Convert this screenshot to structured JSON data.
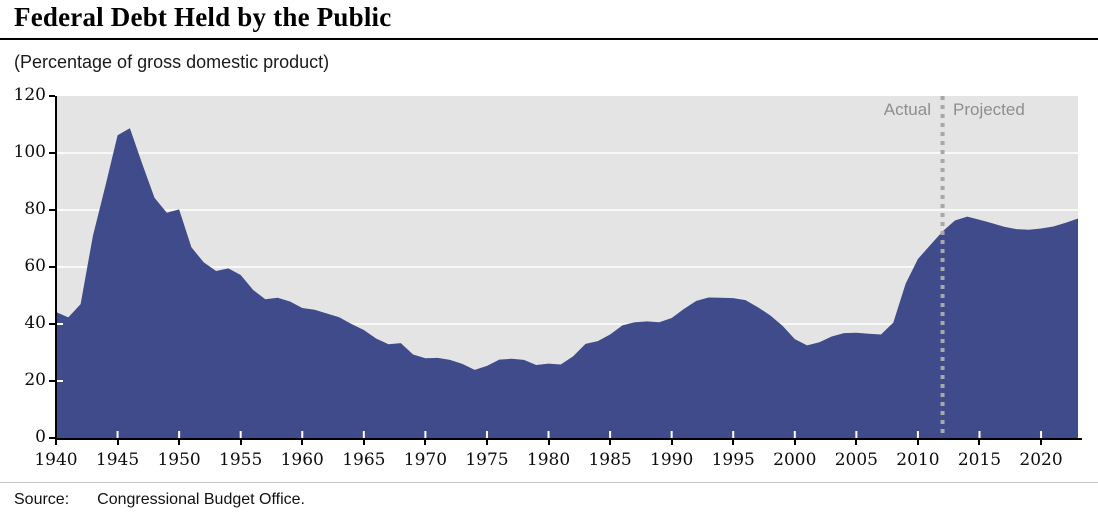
{
  "page": {
    "title": "Federal Debt Held by the Public",
    "subtitle": "(Percentage of gross domestic product)",
    "source_label": "Source:",
    "source_text": "Congressional Budget Office."
  },
  "annotations": {
    "actual_label": "Actual",
    "projected_label": "Projected"
  },
  "colors": {
    "area_fill": "#404b8b",
    "plot_background": "#e4e4e4",
    "gridline": "#ffffff",
    "divider_dash": "#a8a8a8",
    "annotation_text": "#8e8e8e",
    "axis": "#000000"
  },
  "chart_data": {
    "type": "area",
    "title": "Federal Debt Held by the Public",
    "ylabel": "(Percentage of gross domestic product)",
    "xlabel": "",
    "xlim": [
      1940,
      2023
    ],
    "ylim": [
      0,
      120
    ],
    "y_ticks": [
      0,
      20,
      40,
      60,
      80,
      100,
      120
    ],
    "x_ticks": [
      1940,
      1945,
      1950,
      1955,
      1960,
      1965,
      1970,
      1975,
      1980,
      1985,
      1990,
      1995,
      2000,
      2005,
      2010,
      2015,
      2020
    ],
    "grid": true,
    "legend_position": "none",
    "divider_year": 2012,
    "divider_labels": [
      "Actual",
      "Projected"
    ],
    "series": [
      {
        "name": "Federal debt held by the public (% of GDP)",
        "x": [
          1940,
          1941,
          1942,
          1943,
          1944,
          1945,
          1946,
          1947,
          1948,
          1949,
          1950,
          1951,
          1952,
          1953,
          1954,
          1955,
          1956,
          1957,
          1958,
          1959,
          1960,
          1961,
          1962,
          1963,
          1964,
          1965,
          1966,
          1967,
          1968,
          1969,
          1970,
          1971,
          1972,
          1973,
          1974,
          1975,
          1976,
          1977,
          1978,
          1979,
          1980,
          1981,
          1982,
          1983,
          1984,
          1985,
          1986,
          1987,
          1988,
          1989,
          1990,
          1991,
          1992,
          1993,
          1994,
          1995,
          1996,
          1997,
          1998,
          1999,
          2000,
          2001,
          2002,
          2003,
          2004,
          2005,
          2006,
          2007,
          2008,
          2009,
          2010,
          2011,
          2012,
          2013,
          2014,
          2015,
          2016,
          2017,
          2018,
          2019,
          2020,
          2021,
          2022,
          2023
        ],
        "values": [
          44.2,
          42.3,
          47.0,
          70.9,
          88.3,
          106.2,
          108.7,
          96.2,
          84.3,
          79.0,
          80.2,
          66.9,
          61.6,
          58.6,
          59.5,
          57.2,
          52.0,
          48.7,
          49.2,
          47.9,
          45.6,
          45.0,
          43.7,
          42.4,
          40.0,
          37.9,
          34.9,
          32.9,
          33.3,
          29.3,
          28.0,
          28.1,
          27.4,
          26.0,
          23.9,
          25.3,
          27.5,
          27.8,
          27.4,
          25.6,
          26.1,
          25.8,
          28.7,
          33.0,
          34.0,
          36.3,
          39.5,
          40.6,
          40.9,
          40.6,
          42.1,
          45.3,
          48.1,
          49.3,
          49.2,
          49.1,
          48.4,
          45.9,
          43.0,
          39.4,
          34.7,
          32.5,
          33.6,
          35.6,
          36.8,
          36.9,
          36.6,
          36.3,
          40.5,
          54.1,
          62.8,
          67.7,
          72.5,
          76.3,
          77.7,
          76.6,
          75.4,
          74.1,
          73.3,
          73.1,
          73.5,
          74.2,
          75.5,
          77.0
        ]
      }
    ]
  }
}
